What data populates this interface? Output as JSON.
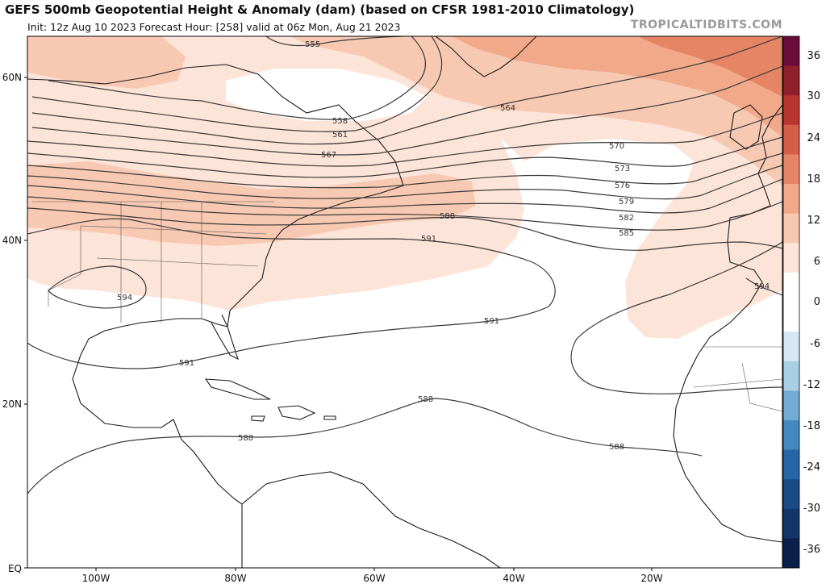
{
  "header": {
    "title": "GEFS 500mb Geopotential Height & Anomaly (dam) (based on CFSR 1981-2010 Climatology)",
    "subtitle": "Init: 12z Aug 10 2023   Forecast Hour: [258]   valid at 06z Mon, Aug 21 2023",
    "brand": "TROPICALTIDBITS.COM"
  },
  "map": {
    "lat_ticks": [
      "60N",
      "40N",
      "20N",
      "EQ"
    ],
    "lon_ticks": [
      "100W",
      "80W",
      "60W",
      "40W",
      "20W"
    ],
    "contour_labels": [
      "555",
      "558",
      "561",
      "564",
      "567",
      "570",
      "573",
      "576",
      "579",
      "582",
      "585",
      "588",
      "591",
      "594"
    ]
  },
  "colorbar": {
    "labels": [
      "36",
      "30",
      "24",
      "18",
      "12",
      "6",
      "0",
      "-6",
      "-12",
      "-18",
      "-24",
      "-30",
      "-36"
    ],
    "colors": {
      "positive": [
        "#fde4d8",
        "#f8c9b2",
        "#f1a98a",
        "#e58565",
        "#d55e47",
        "#b93530",
        "#8f1f2a",
        "#6a0c3a"
      ],
      "zero": "#ffffff",
      "negative": [
        "#d6e8f3",
        "#a9cfe5",
        "#72acd3",
        "#4389bf",
        "#2566a6",
        "#194b87",
        "#123668",
        "#0a1f4a"
      ]
    }
  }
}
